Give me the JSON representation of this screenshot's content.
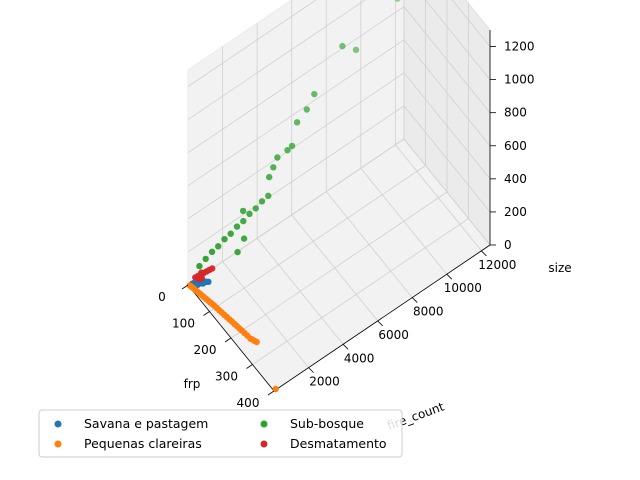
{
  "chart_data": {
    "type": "scatter",
    "title": "",
    "xlabel": "frp",
    "ylabel": "fire_count",
    "zlabel": "size",
    "xlim": [
      0,
      400
    ],
    "ylim": [
      0,
      12500
    ],
    "zlim": [
      0,
      1300
    ],
    "x_ticks": [
      0,
      100,
      200,
      300,
      400
    ],
    "y_ticks": [
      2000,
      4000,
      6000,
      8000,
      10000,
      12000
    ],
    "z_ticks": [
      0,
      200,
      400,
      600,
      800,
      1000,
      1200
    ],
    "grid": true,
    "legend_placement": "lower-left",
    "series": [
      {
        "name": "Savana e pastagem",
        "color": "#1f77b4",
        "points": [
          [
            10,
            120,
            15
          ],
          [
            15,
            180,
            25
          ],
          [
            20,
            240,
            30
          ],
          [
            25,
            300,
            35
          ],
          [
            30,
            360,
            40
          ],
          [
            35,
            420,
            45
          ],
          [
            40,
            480,
            50
          ],
          [
            12,
            90,
            12
          ],
          [
            18,
            150,
            20
          ],
          [
            22,
            210,
            28
          ],
          [
            28,
            270,
            33
          ],
          [
            32,
            330,
            38
          ],
          [
            8,
            60,
            8
          ],
          [
            14,
            100,
            18
          ],
          [
            26,
            220,
            26
          ],
          [
            45,
            520,
            55
          ],
          [
            50,
            560,
            60
          ],
          [
            38,
            400,
            42
          ]
        ]
      },
      {
        "name": "Pequenas clareiras",
        "color": "#ff7f0e",
        "points": [
          [
            5,
            40,
            2
          ],
          [
            12,
            60,
            4
          ],
          [
            20,
            80,
            5
          ],
          [
            28,
            100,
            6
          ],
          [
            36,
            120,
            7
          ],
          [
            44,
            140,
            8
          ],
          [
            52,
            160,
            9
          ],
          [
            60,
            180,
            10
          ],
          [
            68,
            200,
            11
          ],
          [
            76,
            220,
            12
          ],
          [
            84,
            240,
            13
          ],
          [
            92,
            260,
            14
          ],
          [
            100,
            280,
            15
          ],
          [
            110,
            300,
            16
          ],
          [
            120,
            320,
            17
          ],
          [
            130,
            340,
            18
          ],
          [
            140,
            360,
            19
          ],
          [
            150,
            380,
            20
          ],
          [
            160,
            400,
            21
          ],
          [
            170,
            420,
            22
          ],
          [
            180,
            440,
            23
          ],
          [
            190,
            460,
            24
          ],
          [
            200,
            480,
            25
          ],
          [
            210,
            500,
            26
          ],
          [
            220,
            520,
            27
          ],
          [
            232,
            540,
            28
          ],
          [
            245,
            560,
            29
          ],
          [
            250,
            600,
            30
          ],
          [
            258,
            640,
            30
          ],
          [
            265,
            680,
            32
          ],
          [
            400,
            100,
            5
          ]
        ]
      },
      {
        "name": "Sub-bosque",
        "color": "#2ca02c",
        "points": [
          [
            5,
            600,
            80
          ],
          [
            10,
            900,
            110
          ],
          [
            15,
            1200,
            140
          ],
          [
            20,
            1500,
            160
          ],
          [
            25,
            1800,
            190
          ],
          [
            30,
            2100,
            210
          ],
          [
            35,
            2400,
            240
          ],
          [
            40,
            2700,
            260
          ],
          [
            45,
            3000,
            290
          ],
          [
            50,
            3300,
            310
          ],
          [
            55,
            3600,
            340
          ],
          [
            60,
            3900,
            360
          ],
          [
            40,
            4200,
            420
          ],
          [
            35,
            4500,
            450
          ],
          [
            30,
            4800,
            480
          ],
          [
            45,
            5200,
            520
          ],
          [
            50,
            5400,
            540
          ],
          [
            25,
            6000,
            600
          ],
          [
            30,
            6500,
            650
          ],
          [
            20,
            10800,
            1300
          ],
          [
            35,
            8500,
            900
          ],
          [
            25,
            7000,
            700
          ],
          [
            15,
            3000,
            260
          ],
          [
            60,
            2500,
            200
          ],
          [
            70,
            2000,
            170
          ],
          [
            5,
            11500,
            1000
          ],
          [
            10,
            12000,
            900
          ],
          [
            18,
            9500,
            780
          ]
        ]
      },
      {
        "name": "Desmatamento",
        "color": "#d62728",
        "points": [
          [
            10,
            300,
            40
          ],
          [
            15,
            400,
            50
          ],
          [
            20,
            500,
            60
          ],
          [
            25,
            600,
            70
          ],
          [
            30,
            700,
            80
          ],
          [
            35,
            800,
            90
          ],
          [
            40,
            900,
            100
          ],
          [
            22,
            350,
            45
          ],
          [
            28,
            450,
            55
          ],
          [
            18,
            550,
            65
          ]
        ]
      }
    ]
  }
}
